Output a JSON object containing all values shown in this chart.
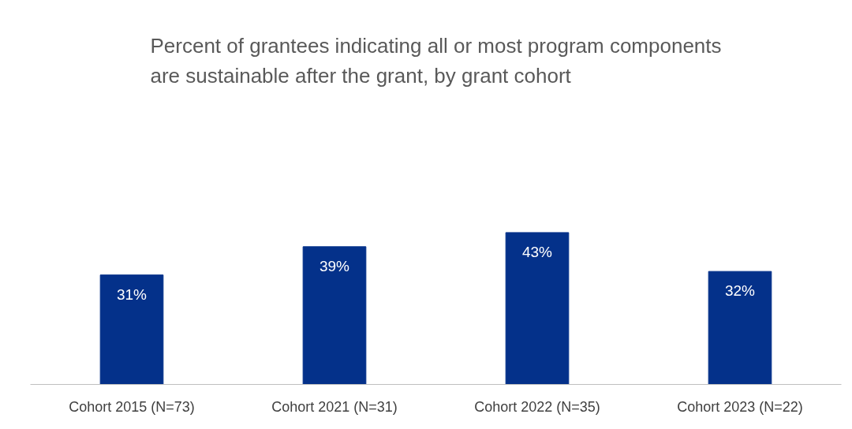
{
  "chart_data": {
    "type": "bar",
    "title": "Percent of grantees indicating all or most program components\nare sustainable after the grant, by grant cohort",
    "categories": [
      "Cohort 2015 (N=73)",
      "Cohort 2021 (N=31)",
      "Cohort 2022 (N=35)",
      "Cohort 2023 (N=22)"
    ],
    "values": [
      31,
      39,
      43,
      32
    ],
    "color": "#04318a",
    "data_labels": true,
    "value_labels": [
      "31%",
      "39%",
      "43%",
      "32%"
    ]
  }
}
